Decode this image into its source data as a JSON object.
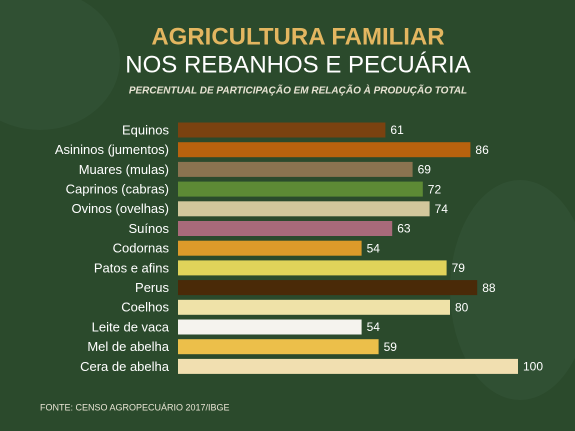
{
  "chart_data": {
    "type": "barh",
    "title": "AGRICULTURA FAMILIAR",
    "subtitle": "NOS REBANHOS E PECUÁRIA",
    "description": "PERCENTUAL DE PARTICIPAÇÃO EM RELAÇÃO À PRODUÇÃO TOTAL",
    "source": "FONTE: CENSO AGROPECUÁRIO 2017/IBGE",
    "categories": [
      "Equinos",
      "Asininos (jumentos)",
      "Muares (mulas)",
      "Caprinos (cabras)",
      "Ovinos (ovelhas)",
      "Suínos",
      "Codornas",
      "Patos e afins",
      "Perus",
      "Coelhos",
      "Leite de vaca",
      "Mel de abelha",
      "Cera de abelha"
    ],
    "values": [
      61,
      86,
      69,
      72,
      74,
      63,
      54,
      79,
      88,
      80,
      54,
      59,
      100
    ],
    "colors": [
      "#7a4210",
      "#b8620e",
      "#8a7350",
      "#5d8a35",
      "#d2c79c",
      "#a86a7a",
      "#dc9a2a",
      "#e0d35a",
      "#4a2a08",
      "#efe2a8",
      "#f5f3ee",
      "#ecbf4a",
      "#f1dfb0"
    ]
  }
}
